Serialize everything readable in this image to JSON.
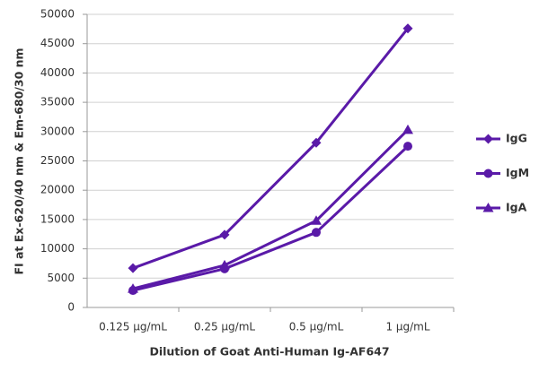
{
  "chart_data": {
    "type": "line",
    "x_label": "Dilution of Goat Anti-Human Ig-AF647",
    "y_label": "FI at Ex-620/40 nm & Em-680/30 nm",
    "categories": [
      "0.125 µg/mL",
      "0.25 µg/mL",
      "0.5 µg/mL",
      "1 µg/mL"
    ],
    "series": [
      {
        "name": "IgG",
        "color": "#5a1aa8",
        "marker": "diamond",
        "values": [
          6700,
          12400,
          28100,
          47600
        ]
      },
      {
        "name": "IgM",
        "color": "#5a1aa8",
        "marker": "circle",
        "values": [
          2900,
          6600,
          12800,
          27500
        ]
      },
      {
        "name": "IgA",
        "color": "#5a1aa8",
        "marker": "triangle",
        "values": [
          3200,
          7200,
          14800,
          30300
        ]
      }
    ],
    "ylim": [
      0,
      50000
    ],
    "yticks": [
      0,
      5000,
      10000,
      15000,
      20000,
      25000,
      30000,
      35000,
      40000,
      45000,
      50000
    ],
    "grid": true
  }
}
